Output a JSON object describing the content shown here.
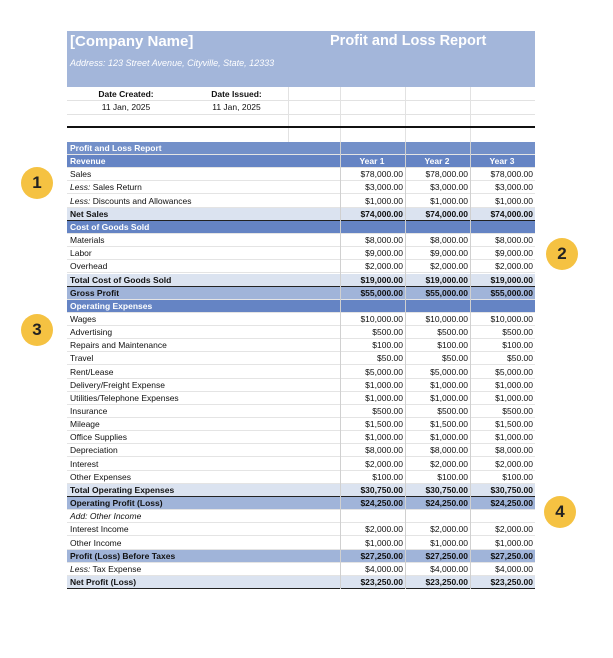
{
  "header": {
    "company": "[Company Name]",
    "title": "Profit and Loss Report",
    "address": "Address: 123 Street Avenue, Cityville, State, 12333"
  },
  "dates": {
    "created_label": "Date Created:",
    "created": "11 Jan, 2025",
    "issued_label": "Date Issued:",
    "issued": "11 Jan, 2025"
  },
  "table": {
    "title": "Profit and Loss Report",
    "rows": [
      {
        "label": "Revenue",
        "values": [
          "Year 1",
          "Year 2",
          "Year 3"
        ]
      },
      {
        "label": "Sales",
        "values": [
          "$78,000.00",
          "$78,000.00",
          "$78,000.00"
        ]
      },
      {
        "prefix": "Less:",
        "label": "Sales Return",
        "values": [
          "$3,000.00",
          "$3,000.00",
          "$3,000.00"
        ]
      },
      {
        "prefix": "Less:",
        "label": "Discounts and Allowances",
        "values": [
          "$1,000.00",
          "$1,000.00",
          "$1,000.00"
        ]
      },
      {
        "label": "Net Sales",
        "values": [
          "$74,000.00",
          "$74,000.00",
          "$74,000.00"
        ]
      },
      {
        "label": "Cost of Goods Sold",
        "values": []
      },
      {
        "label": "Materials",
        "values": [
          "$8,000.00",
          "$8,000.00",
          "$8,000.00"
        ]
      },
      {
        "label": "Labor",
        "values": [
          "$9,000.00",
          "$9,000.00",
          "$9,000.00"
        ]
      },
      {
        "label": "Overhead",
        "values": [
          "$2,000.00",
          "$2,000.00",
          "$2,000.00"
        ]
      },
      {
        "label": "Total Cost of Goods Sold",
        "values": [
          "$19,000.00",
          "$19,000.00",
          "$19,000.00"
        ]
      },
      {
        "label": "Gross Profit",
        "values": [
          "$55,000.00",
          "$55,000.00",
          "$55,000.00"
        ]
      },
      {
        "label": "Operating Expenses",
        "values": []
      },
      {
        "label": "Wages",
        "values": [
          "$10,000.00",
          "$10,000.00",
          "$10,000.00"
        ]
      },
      {
        "label": "Advertising",
        "values": [
          "$500.00",
          "$500.00",
          "$500.00"
        ]
      },
      {
        "label": "Repairs and Maintenance",
        "values": [
          "$100.00",
          "$100.00",
          "$100.00"
        ]
      },
      {
        "label": "Travel",
        "values": [
          "$50.00",
          "$50.00",
          "$50.00"
        ]
      },
      {
        "label": "Rent/Lease",
        "values": [
          "$5,000.00",
          "$5,000.00",
          "$5,000.00"
        ]
      },
      {
        "label": "Delivery/Freight Expense",
        "values": [
          "$1,000.00",
          "$1,000.00",
          "$1,000.00"
        ]
      },
      {
        "label": "Utilities/Telephone Expenses",
        "values": [
          "$1,000.00",
          "$1,000.00",
          "$1,000.00"
        ]
      },
      {
        "label": "Insurance",
        "values": [
          "$500.00",
          "$500.00",
          "$500.00"
        ]
      },
      {
        "label": "Mileage",
        "values": [
          "$1,500.00",
          "$1,500.00",
          "$1,500.00"
        ]
      },
      {
        "label": "Office Supplies",
        "values": [
          "$1,000.00",
          "$1,000.00",
          "$1,000.00"
        ]
      },
      {
        "label": "Depreciation",
        "values": [
          "$8,000.00",
          "$8,000.00",
          "$8,000.00"
        ]
      },
      {
        "label": "Interest",
        "values": [
          "$2,000.00",
          "$2,000.00",
          "$2,000.00"
        ]
      },
      {
        "label": "Other Expenses",
        "values": [
          "$100.00",
          "$100.00",
          "$100.00"
        ]
      },
      {
        "label": "Total Operating Expenses",
        "values": [
          "$30,750.00",
          "$30,750.00",
          "$30,750.00"
        ]
      },
      {
        "label": "Operating Profit (Loss)",
        "values": [
          "$24,250.00",
          "$24,250.00",
          "$24,250.00"
        ]
      },
      {
        "label": "Add: Other Income",
        "values": []
      },
      {
        "label": "Interest Income",
        "values": [
          "$2,000.00",
          "$2,000.00",
          "$2,000.00"
        ]
      },
      {
        "label": "Other Income",
        "values": [
          "$1,000.00",
          "$1,000.00",
          "$1,000.00"
        ]
      },
      {
        "label": "Profit (Loss) Before Taxes",
        "values": [
          "$27,250.00",
          "$27,250.00",
          "$27,250.00"
        ]
      },
      {
        "prefix": "Less:",
        "label": "Tax Expense",
        "values": [
          "$4,000.00",
          "$4,000.00",
          "$4,000.00"
        ]
      },
      {
        "label": "Net Profit (Loss)",
        "values": [
          "$23,250.00",
          "$23,250.00",
          "$23,250.00"
        ]
      }
    ]
  },
  "callouts": [
    "1",
    "2",
    "3",
    "4"
  ]
}
